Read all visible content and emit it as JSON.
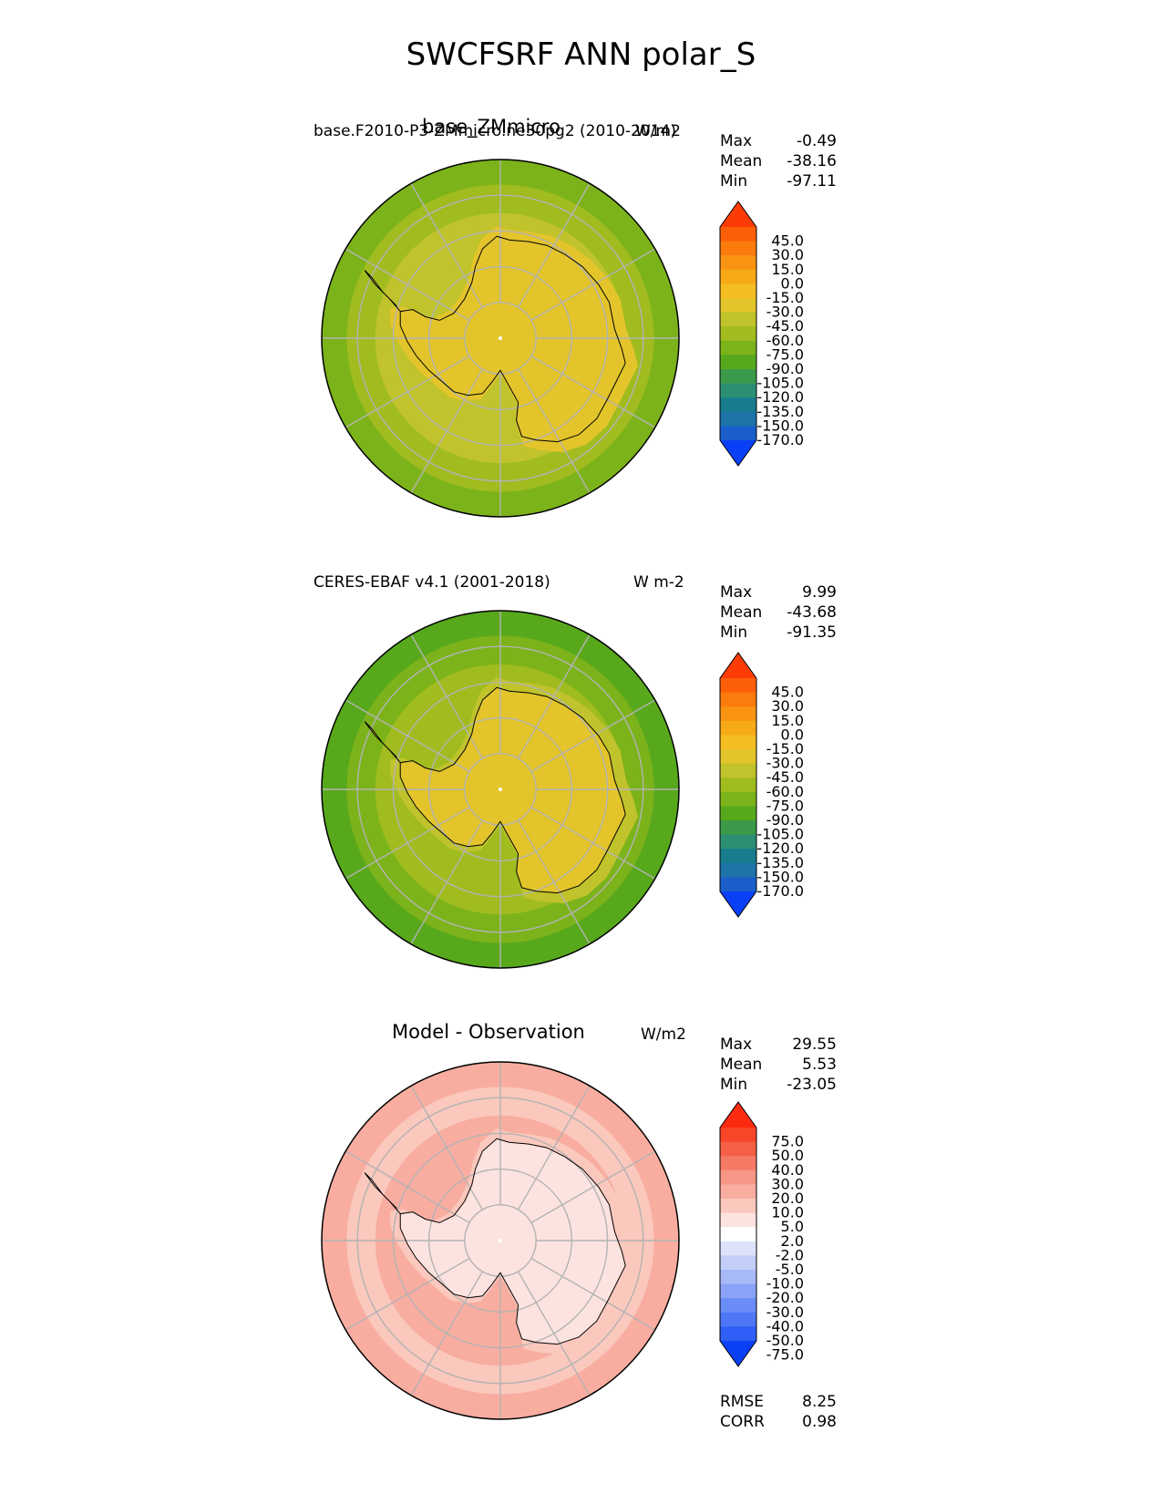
{
  "title": "SWCFSRF ANN polar_S",
  "colors": {
    "grid": "#b3b3b3",
    "coast": "#000000",
    "test_palette": [
      "#0a40f5",
      "#1a5ecc",
      "#1e73a8",
      "#177c8c",
      "#2c8f73",
      "#3a9a4a",
      "#58a81c",
      "#7cb31a",
      "#a0bc1f",
      "#c0c32b",
      "#e3c52b",
      "#f4bd22",
      "#f8a916",
      "#f99412",
      "#fb7b0c",
      "#fc5f08",
      "#fd3c05"
    ],
    "diff_palette": [
      "#0a40f5",
      "#2e5ff7",
      "#4e77f7",
      "#6b8df7",
      "#8aa3f8",
      "#a8b9f8",
      "#c4cff9",
      "#dde3fb",
      "#ffffff",
      "#fde3df",
      "#fbc8bd",
      "#f8ada0",
      "#f69687",
      "#f57a66",
      "#f55f45",
      "#f84528",
      "#fb2a10"
    ]
  },
  "chart_data": [
    {
      "type": "heatmap",
      "projection": "south-polar-stereographic",
      "title_left": "base.F2010-P3-ZMmicro.ne30pg2 (2010-2014)",
      "title_center": "base_ZMmicro",
      "title_right": "W/m2",
      "stats": {
        "max_label": "Max",
        "max": "-0.49",
        "mean_label": "Mean",
        "mean": "-38.16",
        "min_label": "Min",
        "min": "-97.11"
      },
      "zones": {
        "ocean_outer": -75,
        "ocean_mid": -60,
        "ocean_inner": -45,
        "sea_ice": -30,
        "continent": -20
      },
      "colorbar": {
        "palette": "test_palette",
        "levels": [
          "45.0",
          "30.0",
          "15.0",
          "0.0",
          "-15.0",
          "-30.0",
          "-45.0",
          "-60.0",
          "-75.0",
          "-90.0",
          "-105.0",
          "-120.0",
          "-135.0",
          "-150.0",
          "-170.0"
        ],
        "extend": "both"
      }
    },
    {
      "type": "heatmap",
      "projection": "south-polar-stereographic",
      "title_left": "CERES-EBAF v4.1 (2001-2018)",
      "title_center": "",
      "title_right": "W m-2",
      "stats": {
        "max_label": "Max",
        "max": "9.99",
        "mean_label": "Mean",
        "mean": "-43.68",
        "min_label": "Min",
        "min": "-91.35"
      },
      "zones": {
        "ocean_outer": -80,
        "ocean_mid": -65,
        "ocean_inner": -50,
        "sea_ice": -40,
        "continent": -20
      },
      "colorbar": {
        "palette": "test_palette",
        "levels": [
          "45.0",
          "30.0",
          "15.0",
          "0.0",
          "-15.0",
          "-30.0",
          "-45.0",
          "-60.0",
          "-75.0",
          "-90.0",
          "-105.0",
          "-120.0",
          "-135.0",
          "-150.0",
          "-170.0"
        ],
        "extend": "both"
      }
    },
    {
      "type": "heatmap",
      "projection": "south-polar-stereographic",
      "title_left": "",
      "title_center": "Model - Observation",
      "title_right": "W/m2",
      "stats": {
        "max_label": "Max",
        "max": "29.55",
        "mean_label": "Mean",
        "mean": "5.53",
        "min_label": "Min",
        "min": "-23.05"
      },
      "extra_stats": {
        "rmse_label": "RMSE",
        "rmse": "8.25",
        "corr_label": "CORR",
        "corr": "0.98"
      },
      "zones": {
        "ocean_outer": 12,
        "ocean_mid": 8,
        "ocean_inner": 14,
        "sea_ice": 6,
        "continent": 3
      },
      "colorbar": {
        "palette": "diff_palette",
        "levels": [
          "75.0",
          "50.0",
          "40.0",
          "30.0",
          "20.0",
          "10.0",
          "5.0",
          "2.0",
          "-2.0",
          "-5.0",
          "-10.0",
          "-20.0",
          "-30.0",
          "-40.0",
          "-50.0",
          "-75.0"
        ],
        "extend": "both"
      }
    }
  ]
}
